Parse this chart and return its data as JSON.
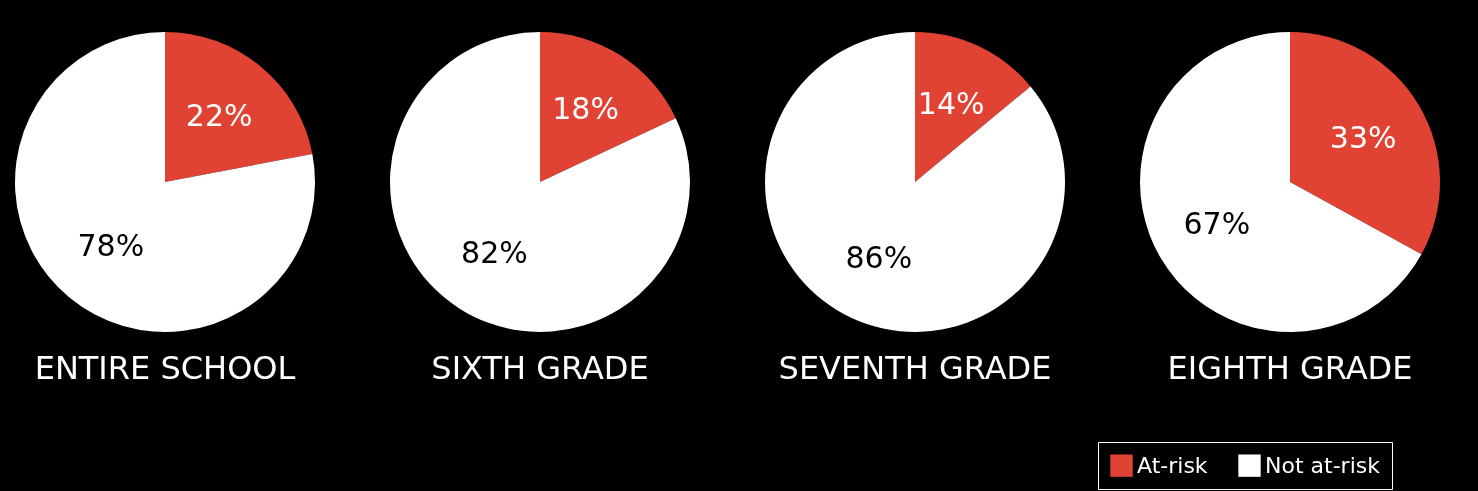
{
  "chart_data": [
    {
      "type": "pie",
      "title": "ENTIRE SCHOOL",
      "categories": [
        "At-risk",
        "Not at-risk"
      ],
      "values": [
        22,
        78
      ],
      "colors": [
        "#e04333",
        "#ffffff"
      ],
      "value_labels": [
        "22%",
        "78%"
      ],
      "legend": "bottom right"
    },
    {
      "type": "pie",
      "title": "SIXTH GRADE",
      "categories": [
        null,
        null
      ],
      "values": [
        18,
        82
      ],
      "colors": [
        "#e04333",
        "#ffffff"
      ],
      "value_labels": [
        "18%",
        "82%"
      ]
    },
    {
      "type": "pie",
      "title": "SEVENTH GRADE",
      "categories": [
        null,
        null
      ],
      "values": [
        14,
        86
      ],
      "colors": [
        "#e04333",
        "#ffffff"
      ],
      "value_labels": [
        "14%",
        "86%"
      ]
    },
    {
      "type": "pie",
      "title": "EIGHTH GRADE",
      "categories": [
        null,
        null
      ],
      "values": [
        33,
        67
      ],
      "colors": [
        "#e04333",
        "#ffffff"
      ],
      "value_labels": [
        "33%",
        "67%"
      ]
    }
  ]
}
